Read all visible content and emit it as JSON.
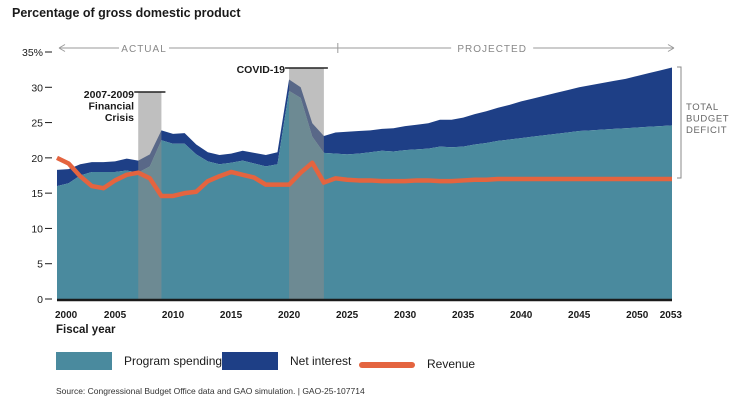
{
  "header": {
    "title": "Percentage of gross domestic product"
  },
  "period_labels": {
    "actual": "ACTUAL",
    "projected": "PROJECTED"
  },
  "annotations": {
    "crisis_1": "2007-2009\nFinancial\nCrisis",
    "crisis_2": "COVID-19",
    "deficit": "TOTAL\nBUDGET\nDEFICIT"
  },
  "legend": {
    "program_spending": "Program spending",
    "net_interest": "Net interest",
    "revenue": "Revenue"
  },
  "footer": {
    "source": "Source: Congressional Budget Office data and GAO simulation.  |  GAO-25-107714"
  },
  "colors": {
    "program_spending": "#4a8a9e",
    "net_interest": "#1e3f86",
    "revenue": "#e4643f",
    "shading": "#a9a9a9",
    "text": "#1a1a1a",
    "muted": "#888888"
  },
  "chart_data": {
    "type": "area",
    "xlabel": "Fiscal year",
    "ylabel": "",
    "xlim": [
      2000,
      2053
    ],
    "ylim": [
      0,
      35
    ],
    "x_ticks": [
      2000,
      2005,
      2010,
      2015,
      2020,
      2025,
      2030,
      2035,
      2040,
      2045,
      2050,
      2053
    ],
    "y_ticks": [
      0,
      5,
      10,
      15,
      20,
      25,
      30,
      35
    ],
    "y_tick_labels": [
      "0",
      "5",
      "10",
      "15",
      "20",
      "25",
      "30",
      "35%"
    ],
    "actual_range": [
      2000,
      2024
    ],
    "projected_range": [
      2024,
      2053
    ],
    "shaded_periods": [
      {
        "label": "2007-2009 Financial Crisis",
        "start": 2007,
        "end": 2009
      },
      {
        "label": "COVID-19",
        "start": 2020,
        "end": 2023
      }
    ],
    "series": [
      {
        "name": "Program spending",
        "type": "area",
        "x": [
          2000,
          2001,
          2002,
          2003,
          2004,
          2005,
          2006,
          2007,
          2008,
          2009,
          2010,
          2011,
          2012,
          2013,
          2014,
          2015,
          2016,
          2017,
          2018,
          2019,
          2020,
          2021,
          2022,
          2023,
          2024,
          2025,
          2026,
          2027,
          2028,
          2029,
          2030,
          2031,
          2032,
          2033,
          2034,
          2035,
          2036,
          2037,
          2038,
          2039,
          2040,
          2041,
          2042,
          2043,
          2044,
          2045,
          2046,
          2047,
          2048,
          2049,
          2050,
          2051,
          2052,
          2053
        ],
        "values": [
          16.0,
          16.4,
          17.5,
          18.0,
          18.0,
          18.0,
          18.2,
          17.9,
          18.8,
          22.5,
          22.0,
          22.0,
          20.5,
          19.5,
          19.1,
          19.3,
          19.6,
          19.2,
          18.8,
          19.1,
          29.5,
          28.5,
          23.0,
          20.7,
          20.6,
          20.5,
          20.6,
          20.8,
          21.0,
          20.9,
          21.1,
          21.2,
          21.3,
          21.6,
          21.5,
          21.6,
          21.9,
          22.1,
          22.4,
          22.6,
          22.8,
          23.0,
          23.2,
          23.4,
          23.6,
          23.8,
          23.9,
          24.0,
          24.1,
          24.2,
          24.3,
          24.4,
          24.5,
          24.6
        ]
      },
      {
        "name": "Net interest",
        "type": "stacked-area",
        "x": [
          2000,
          2001,
          2002,
          2003,
          2004,
          2005,
          2006,
          2007,
          2008,
          2009,
          2010,
          2011,
          2012,
          2013,
          2014,
          2015,
          2016,
          2017,
          2018,
          2019,
          2020,
          2021,
          2022,
          2023,
          2024,
          2025,
          2026,
          2027,
          2028,
          2029,
          2030,
          2031,
          2032,
          2033,
          2034,
          2035,
          2036,
          2037,
          2038,
          2039,
          2040,
          2041,
          2042,
          2043,
          2044,
          2045,
          2046,
          2047,
          2048,
          2049,
          2050,
          2051,
          2052,
          2053
        ],
        "values": [
          2.3,
          2.0,
          1.6,
          1.4,
          1.4,
          1.5,
          1.7,
          1.7,
          1.7,
          1.4,
          1.4,
          1.5,
          1.4,
          1.3,
          1.3,
          1.3,
          1.4,
          1.5,
          1.6,
          1.7,
          1.6,
          1.5,
          1.9,
          2.4,
          3.0,
          3.2,
          3.2,
          3.1,
          3.1,
          3.3,
          3.4,
          3.5,
          3.6,
          3.8,
          3.9,
          4.1,
          4.3,
          4.5,
          4.7,
          4.9,
          5.2,
          5.4,
          5.6,
          5.8,
          6.0,
          6.2,
          6.4,
          6.6,
          6.8,
          7.0,
          7.3,
          7.6,
          7.9,
          8.2
        ]
      },
      {
        "name": "Revenue",
        "type": "line",
        "x": [
          2000,
          2001,
          2002,
          2003,
          2004,
          2005,
          2006,
          2007,
          2008,
          2009,
          2010,
          2011,
          2012,
          2013,
          2014,
          2015,
          2016,
          2017,
          2018,
          2019,
          2020,
          2021,
          2022,
          2023,
          2024,
          2025,
          2026,
          2027,
          2028,
          2029,
          2030,
          2031,
          2032,
          2033,
          2034,
          2035,
          2036,
          2037,
          2038,
          2039,
          2040,
          2041,
          2042,
          2043,
          2044,
          2045,
          2046,
          2047,
          2048,
          2049,
          2050,
          2051,
          2052,
          2053
        ],
        "values": [
          20.0,
          19.2,
          17.4,
          16.0,
          15.7,
          16.8,
          17.6,
          17.9,
          17.1,
          14.6,
          14.6,
          15.0,
          15.2,
          16.7,
          17.4,
          18.0,
          17.6,
          17.2,
          16.2,
          16.2,
          16.2,
          17.9,
          19.3,
          16.5,
          17.1,
          16.9,
          16.8,
          16.8,
          16.7,
          16.7,
          16.7,
          16.8,
          16.8,
          16.7,
          16.7,
          16.8,
          16.9,
          16.9,
          17.0,
          17.0,
          17.0,
          17.0,
          17.0,
          17.0,
          17.0,
          17.0,
          17.0,
          17.0,
          17.0,
          17.0,
          17.0,
          17.0,
          17.0,
          17.0
        ]
      }
    ]
  }
}
